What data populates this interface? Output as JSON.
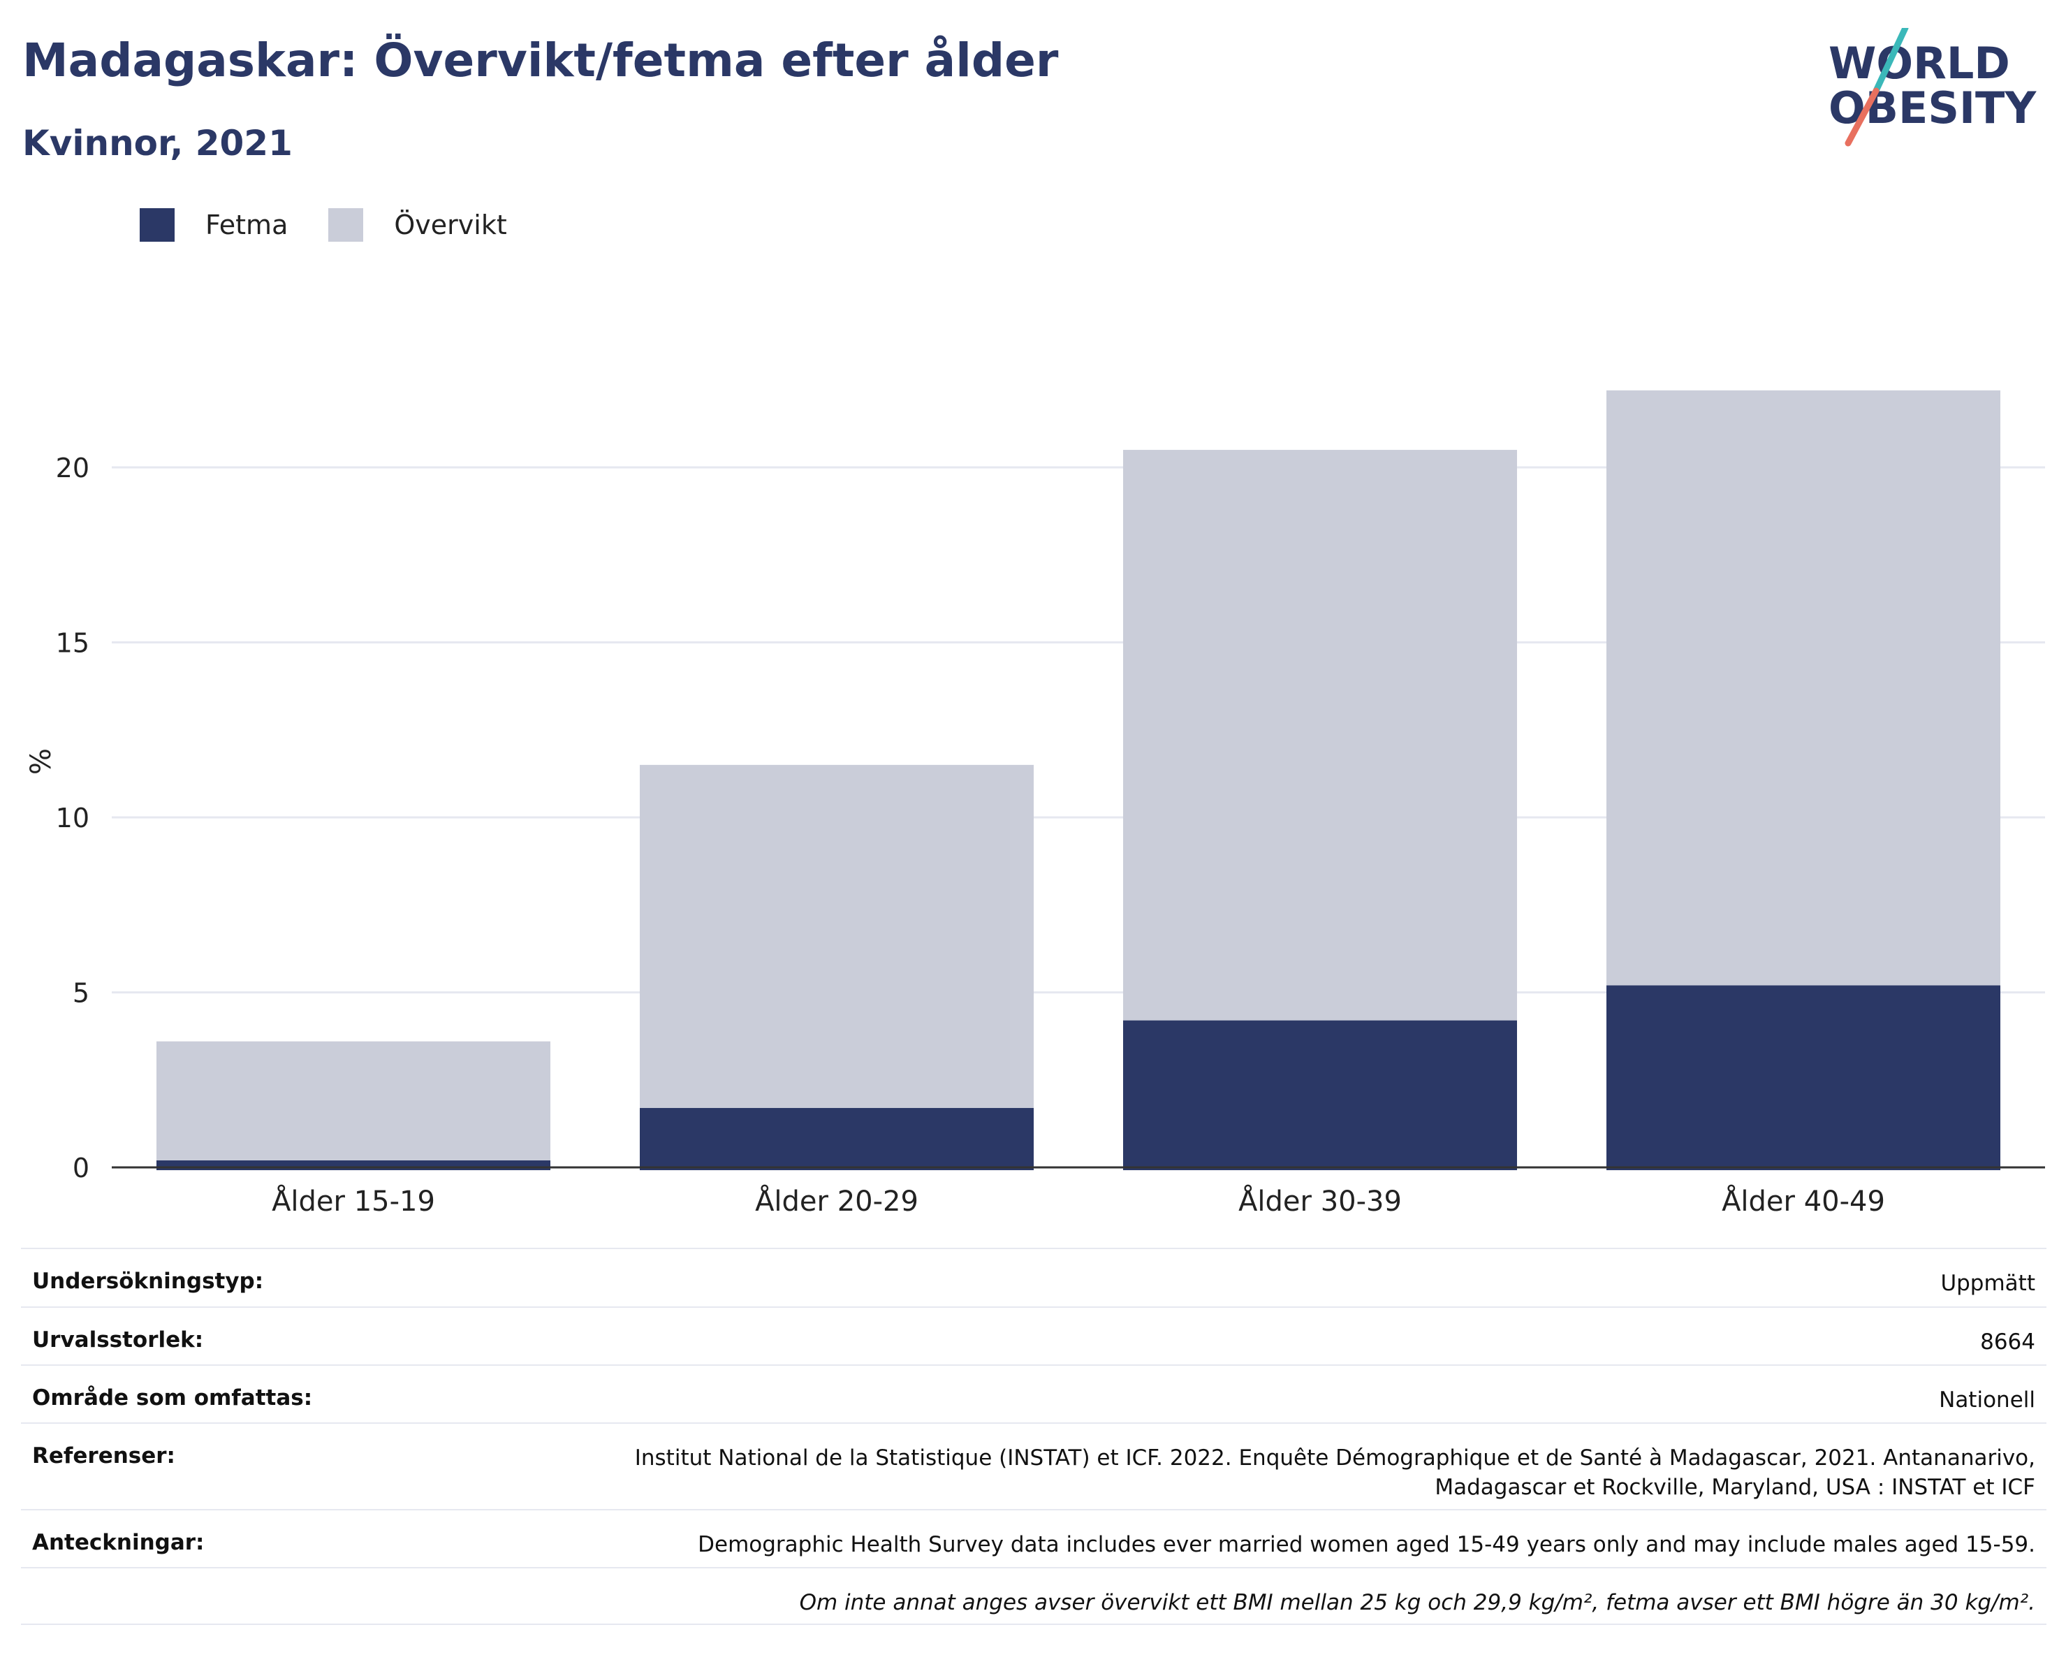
{
  "title": "Madagaskar: Övervikt/fetma efter ålder",
  "subtitle": "Kvinnor, 2021",
  "logo": {
    "line1": "WORLD",
    "line2": "OBESITY"
  },
  "colors": {
    "fetma": "#2b3866",
    "overvikt": "#cacdd9",
    "title": "#2b3866",
    "grid": "#e6e8f0",
    "axis": "#333333"
  },
  "chart_data": {
    "type": "bar",
    "stacked": true,
    "categories": [
      "Ålder 15-19",
      "Ålder 20-29",
      "Ålder 30-39",
      "Ålder 40-49"
    ],
    "series": [
      {
        "name": "Fetma",
        "values": [
          0.2,
          1.7,
          4.2,
          5.2
        ]
      },
      {
        "name": "Övervikt",
        "values": [
          3.4,
          9.8,
          16.3,
          17.0
        ]
      }
    ],
    "ylabel": "%",
    "ylim": [
      0,
      22.5
    ],
    "yticks": [
      "0",
      "5",
      "10",
      "15",
      "20"
    ],
    "grid": true,
    "legend": "top-left"
  },
  "info": {
    "rows": [
      {
        "label": "Undersökningstyp:",
        "value": "Uppmätt"
      },
      {
        "label": "Urvalsstorlek:",
        "value": "8664"
      },
      {
        "label": "Område som omfattas:",
        "value": "Nationell"
      },
      {
        "label": "Referenser:",
        "value_lines": [
          "Institut National de la Statistique (INSTAT) et ICF. 2022. Enquête Démographique et de Santé à Madagascar, 2021. Antananarivo,",
          "Madagascar et Rockville, Maryland, USA : INSTAT et ICF"
        ]
      },
      {
        "label": "Anteckningar:",
        "value": "Demographic Health Survey data includes ever married women aged 15-49 years only and may include males aged 15-59."
      }
    ],
    "note": "Om inte annat anges avser övervikt ett BMI mellan 25 kg och 29,9 kg/m², fetma avser ett BMI högre än 30 kg/m²."
  }
}
